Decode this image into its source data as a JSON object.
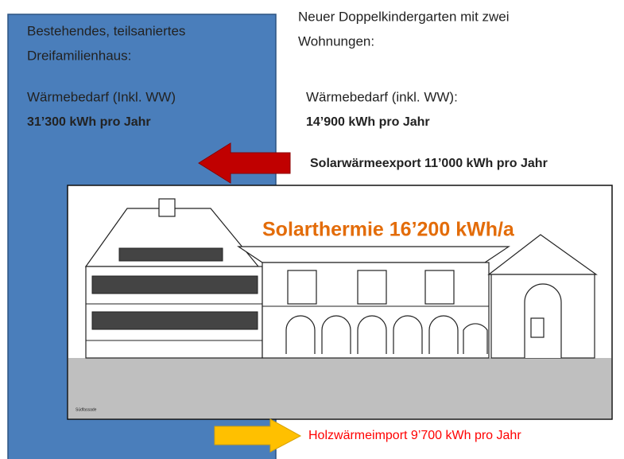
{
  "left": {
    "title_line1": "Bestehendes, teilsaniertes",
    "title_line2": "Dreifamilienhaus:",
    "demand_label": "Wärmebedarf (Inkl. WW)",
    "demand_value": "31’300 kWh pro Jahr"
  },
  "right": {
    "title_line1": "Neuer Doppelkindergarten mit zwei",
    "title_line2": "Wohnungen:",
    "demand_label": "Wärmebedarf (inkl. WW):",
    "demand_value": "14’900 kWh pro Jahr"
  },
  "export_label": "Solarwärmeexport 11’000 kWh pro Jahr",
  "solar_label": "Solarthermie 16’200 kWh/a",
  "facade_label": "Südfassade",
  "import_label": "Holzwärmeimport 9’700 kWh pro Jahr"
}
